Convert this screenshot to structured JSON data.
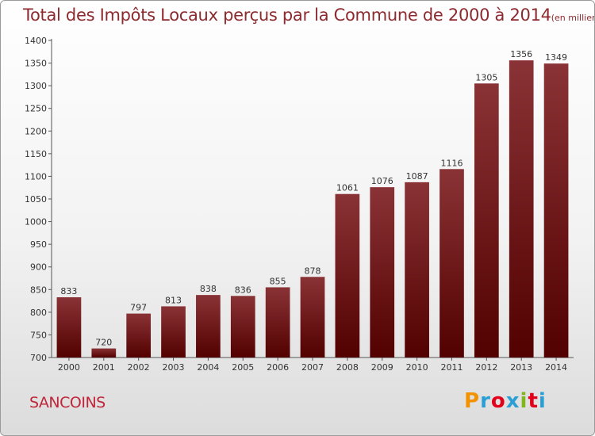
{
  "header": {
    "title": "Total des Impôts Locaux perçus par la Commune de 2000 à 2014",
    "subtitle": "(en milliers d'€)"
  },
  "footer": {
    "commune": "SANCOINS",
    "brand": "Proxiti",
    "brand_colors": [
      "#f39200",
      "#2a9fd6",
      "#e2001a",
      "#2a9fd6",
      "#80b51c",
      "#e2001a",
      "#2a9fd6"
    ]
  },
  "colors": {
    "bar_top": "#8a3336",
    "bar_bottom": "#520000",
    "title": "#8c2a2f",
    "commune": "#c0263a"
  },
  "chart_data": {
    "type": "bar",
    "categories": [
      "2000",
      "2001",
      "2002",
      "2003",
      "2004",
      "2005",
      "2006",
      "2007",
      "2008",
      "2009",
      "2010",
      "2011",
      "2012",
      "2013",
      "2014"
    ],
    "values": [
      833,
      720,
      797,
      813,
      838,
      836,
      855,
      878,
      1061,
      1076,
      1087,
      1116,
      1305,
      1356,
      1349
    ],
    "title": "Total des Impôts Locaux perçus par la Commune de 2000 à 2014",
    "subtitle": "(en milliers d'€)",
    "xlabel": "",
    "ylabel": "",
    "ylim": [
      700,
      1400
    ],
    "yticks": [
      700,
      750,
      800,
      850,
      900,
      950,
      1000,
      1050,
      1100,
      1150,
      1200,
      1250,
      1300,
      1350,
      1400
    ],
    "grid": false,
    "legend": "none"
  }
}
